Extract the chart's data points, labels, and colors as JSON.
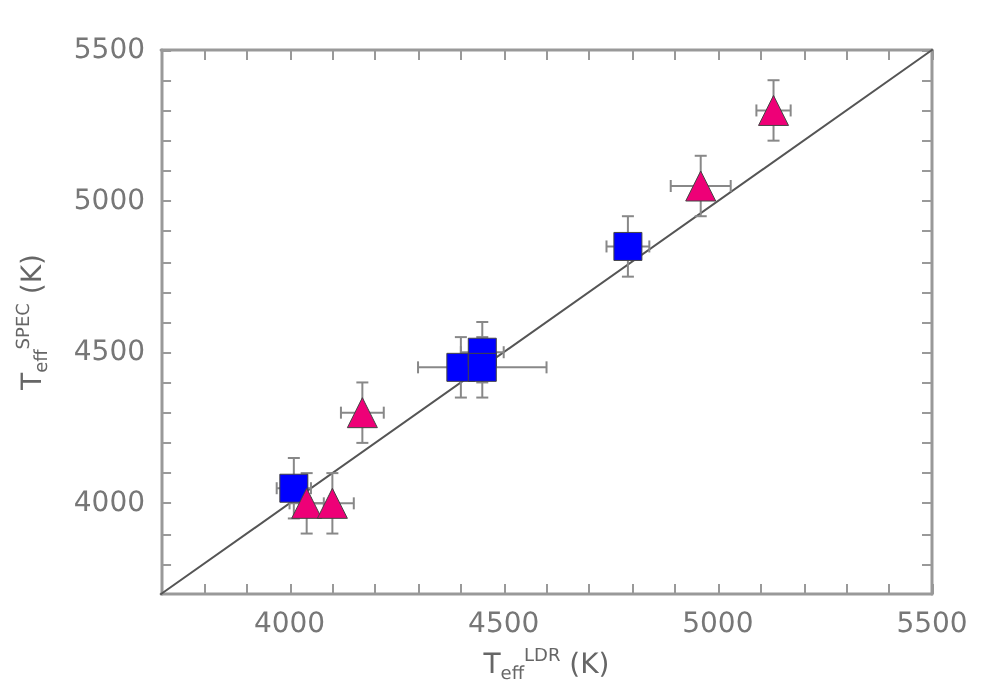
{
  "chart_data": {
    "type": "scatter",
    "xlabel": "T$_{eff}$$^{LDR}$ (K)",
    "ylabel": "T$_{eff}$$^{SPEC}$ (K)",
    "xlim": [
      3700,
      5500
    ],
    "ylim": [
      3700,
      5500
    ],
    "xticks": [
      {
        "value": 3800,
        "label": null
      },
      {
        "value": 3900,
        "label": null
      },
      4000,
      {
        "value": 4100,
        "label": null
      },
      {
        "value": 4200,
        "label": null
      },
      {
        "value": 4300,
        "label": null
      },
      {
        "value": 4400,
        "label": null
      },
      4500,
      {
        "value": 4600,
        "label": null
      },
      {
        "value": 4700,
        "label": null
      },
      {
        "value": 4800,
        "label": null
      },
      {
        "value": 4900,
        "label": null
      },
      5000,
      {
        "value": 5100,
        "label": null
      },
      {
        "value": 5200,
        "label": null
      },
      {
        "value": 5300,
        "label": null
      },
      {
        "value": 5400,
        "label": null
      },
      5500
    ],
    "yticks": [
      {
        "value": 3800,
        "label": null
      },
      {
        "value": 3900,
        "label": null
      },
      4000,
      {
        "value": 4100,
        "label": null
      },
      {
        "value": 4200,
        "label": null
      },
      {
        "value": 4300,
        "label": null
      },
      {
        "value": 4400,
        "label": null
      },
      4500,
      {
        "value": 4600,
        "label": null
      },
      {
        "value": 4700,
        "label": null
      },
      {
        "value": 4800,
        "label": null
      },
      {
        "value": 4900,
        "label": null
      },
      5000,
      {
        "value": 5100,
        "label": null
      },
      {
        "value": 5200,
        "label": null
      },
      {
        "value": 5300,
        "label": null
      },
      {
        "value": 5400,
        "label": null
      },
      5500
    ],
    "grid": false,
    "series": [
      {
        "type": "line",
        "color": "#555555",
        "marker": "none",
        "line_style": "solid",
        "x": [
          3700,
          5500
        ],
        "values": [
          3700,
          5500
        ]
      },
      {
        "type": "scatter",
        "color": "#0000ff",
        "marker": "square",
        "x": [
          4010,
          4400,
          4450,
          4450,
          4790
        ],
        "values": [
          4050,
          4450,
          4500,
          4450,
          4850
        ],
        "xerrors": [
          40,
          30,
          50,
          150,
          50
        ],
        "errors": [
          100,
          100,
          100,
          100,
          100
        ]
      },
      {
        "type": "scatter",
        "color": "#ee0077",
        "marker": "triangle",
        "x": [
          4040,
          4100,
          4170,
          4960,
          5130
        ],
        "values": [
          4000,
          4000,
          4300,
          5050,
          5300
        ],
        "xerrors": [
          40,
          50,
          50,
          70,
          40
        ],
        "errors": [
          100,
          100,
          100,
          100,
          100
        ]
      }
    ]
  }
}
